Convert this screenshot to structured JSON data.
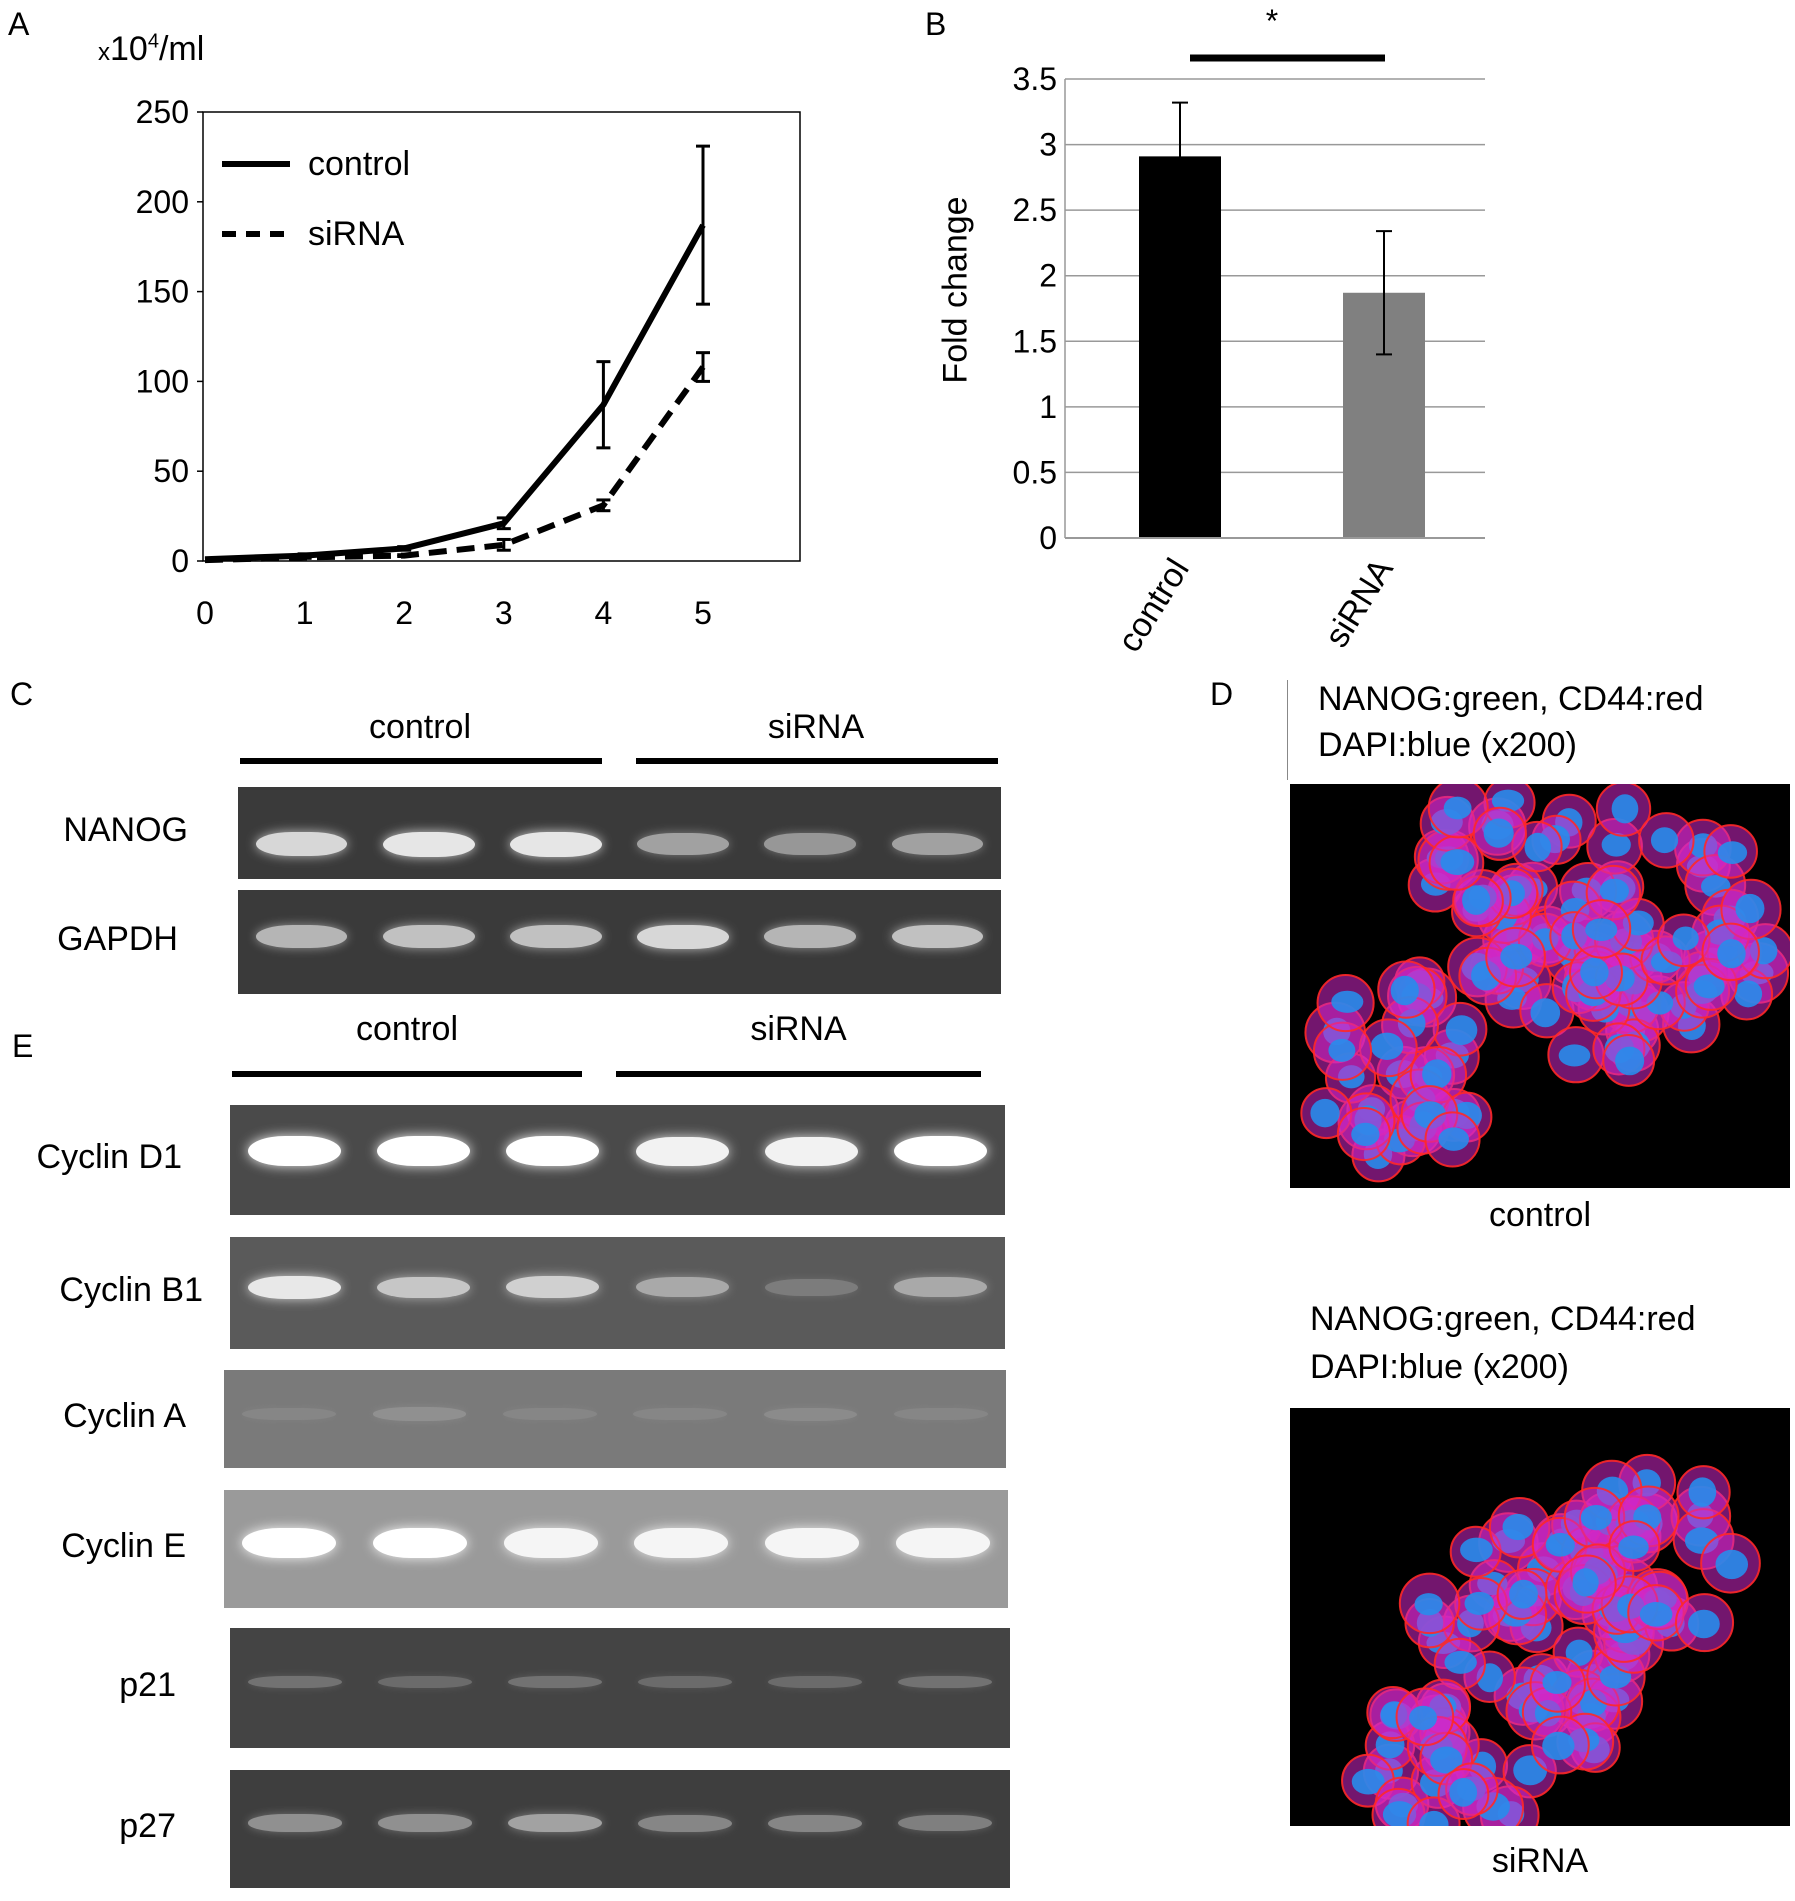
{
  "panels": {
    "a": "A",
    "b": "B",
    "c": "C",
    "d": "D",
    "e": "E"
  },
  "chart_data": [
    {
      "type": "line",
      "panel": "A",
      "ylabel_prefix": "x",
      "ylabel_base": "10",
      "ylabel_exp": "4",
      "ylabel_suffix": "/ml",
      "x": [
        0,
        1,
        2,
        3,
        4,
        5
      ],
      "xlim": [
        0,
        5
      ],
      "ylim": [
        0,
        250
      ],
      "yticks": [
        0,
        50,
        100,
        150,
        200,
        250
      ],
      "series": [
        {
          "name": "control",
          "style": "solid",
          "values": [
            1,
            3,
            7,
            21,
            87,
            187
          ],
          "err": [
            0,
            1,
            1,
            3,
            24,
            44
          ]
        },
        {
          "name": "siRNA",
          "style": "dashed",
          "values": [
            0.5,
            2,
            3,
            9,
            31,
            108
          ],
          "err": [
            0,
            0.5,
            0.5,
            3,
            3,
            8
          ]
        }
      ],
      "legend_position": "top-left",
      "grid": false
    },
    {
      "type": "bar",
      "panel": "B",
      "categories": [
        "control",
        "siRNA"
      ],
      "values": [
        2.91,
        1.87
      ],
      "err": [
        0.41,
        0.47
      ],
      "colors": [
        "#000000",
        "#808080"
      ],
      "ylabel": "Fold change",
      "ylim": [
        0,
        3.5
      ],
      "yticks": [
        "0",
        "0.5",
        "1",
        "1.5",
        "2",
        "2.5",
        "3",
        "3.5"
      ],
      "grid": true,
      "significance": "*"
    }
  ],
  "gel_c": {
    "groups": [
      "control",
      "siRNA"
    ],
    "rows": [
      {
        "label": "NANOG",
        "bands": [
          0.85,
          0.9,
          0.9,
          0.6,
          0.55,
          0.6
        ]
      },
      {
        "label": "GAPDH",
        "bands": [
          0.7,
          0.75,
          0.75,
          0.85,
          0.7,
          0.75
        ]
      }
    ]
  },
  "gel_e": {
    "groups": [
      "control",
      "siRNA"
    ],
    "rows": [
      {
        "label": "Cyclin D1",
        "bands": [
          1.0,
          1.0,
          1.0,
          0.95,
          0.95,
          1.0
        ],
        "bg": "#4a4a4a"
      },
      {
        "label": "Cyclin B1",
        "bands": [
          0.9,
          0.75,
          0.8,
          0.6,
          0.3,
          0.6
        ],
        "bg": "#5a5a5a"
      },
      {
        "label": "Cyclin A",
        "bands": [
          0.25,
          0.35,
          0.25,
          0.25,
          0.3,
          0.25
        ],
        "bg": "#7a7a7a"
      },
      {
        "label": "Cyclin E",
        "bands": [
          1.0,
          1.0,
          0.95,
          0.95,
          0.95,
          0.95
        ],
        "bg": "#9a9a9a"
      },
      {
        "label": "p21",
        "bands": [
          0.3,
          0.25,
          0.3,
          0.25,
          0.25,
          0.3
        ],
        "bg": "#444444"
      },
      {
        "label": "p27",
        "bands": [
          0.5,
          0.5,
          0.6,
          0.45,
          0.45,
          0.4
        ],
        "bg": "#3e3e3e"
      }
    ]
  },
  "panel_d": {
    "images": [
      {
        "header1": "NANOG:green, CD44:red",
        "header2": "DAPI:blue (x200)",
        "caption": "control"
      },
      {
        "header1": "NANOG:green, CD44:red",
        "header2": "DAPI:blue (x200)",
        "caption": "siRNA"
      }
    ]
  }
}
